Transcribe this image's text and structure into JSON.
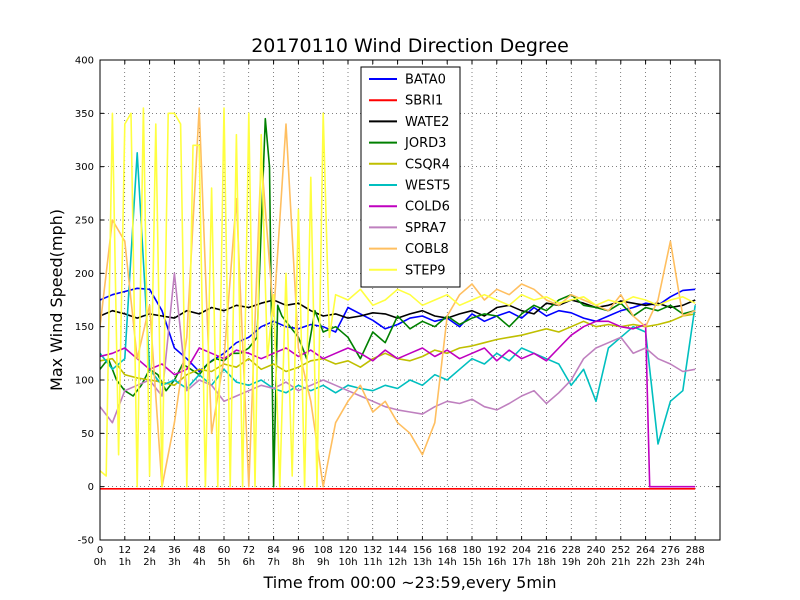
{
  "chart_data": {
    "type": "line",
    "title": "20170110 Wind Direction Degree",
    "xlabel": "Time from 00:00 ~23:59,every 5min",
    "ylabel": "Max Wind Speed(mph)",
    "xlim": [
      0,
      300
    ],
    "ylim": [
      -50,
      400
    ],
    "grid": true,
    "legend_position": "top-center",
    "x_ticks": [
      {
        "value": 0,
        "label": "0",
        "sublabel": "0h"
      },
      {
        "value": 12,
        "label": "12",
        "sublabel": "1h"
      },
      {
        "value": 24,
        "label": "24",
        "sublabel": "2h"
      },
      {
        "value": 36,
        "label": "36",
        "sublabel": "3h"
      },
      {
        "value": 48,
        "label": "48",
        "sublabel": "4h"
      },
      {
        "value": 60,
        "label": "60",
        "sublabel": "5h"
      },
      {
        "value": 72,
        "label": "72",
        "sublabel": "6h"
      },
      {
        "value": 84,
        "label": "84",
        "sublabel": "7h"
      },
      {
        "value": 96,
        "label": "96",
        "sublabel": "8h"
      },
      {
        "value": 108,
        "label": "108",
        "sublabel": "9h"
      },
      {
        "value": 120,
        "label": "120",
        "sublabel": "10h"
      },
      {
        "value": 132,
        "label": "132",
        "sublabel": "11h"
      },
      {
        "value": 144,
        "label": "144",
        "sublabel": "12h"
      },
      {
        "value": 156,
        "label": "156",
        "sublabel": "13h"
      },
      {
        "value": 168,
        "label": "168",
        "sublabel": "14h"
      },
      {
        "value": 180,
        "label": "180",
        "sublabel": "15h"
      },
      {
        "value": 192,
        "label": "192",
        "sublabel": "16h"
      },
      {
        "value": 204,
        "label": "204",
        "sublabel": "17h"
      },
      {
        "value": 216,
        "label": "216",
        "sublabel": "18h"
      },
      {
        "value": 228,
        "label": "228",
        "sublabel": "19h"
      },
      {
        "value": 240,
        "label": "240",
        "sublabel": "20h"
      },
      {
        "value": 252,
        "label": "252",
        "sublabel": "21h"
      },
      {
        "value": 264,
        "label": "264",
        "sublabel": "22h"
      },
      {
        "value": 276,
        "label": "276",
        "sublabel": "23h"
      },
      {
        "value": 288,
        "label": "288",
        "sublabel": "24h"
      }
    ],
    "y_ticks": [
      -50,
      0,
      50,
      100,
      150,
      200,
      250,
      300,
      350,
      400
    ],
    "series": [
      {
        "name": "BATA0",
        "color": "#0000ff",
        "x": [
          0,
          6,
          12,
          18,
          24,
          30,
          36,
          42,
          48,
          54,
          60,
          66,
          72,
          78,
          84,
          90,
          96,
          102,
          108,
          114,
          120,
          126,
          132,
          138,
          144,
          150,
          156,
          162,
          168,
          174,
          180,
          186,
          192,
          198,
          204,
          210,
          216,
          222,
          228,
          234,
          240,
          246,
          252,
          258,
          264,
          270,
          276,
          282,
          288
        ],
        "y": [
          175,
          180,
          183,
          186,
          185,
          165,
          130,
          120,
          108,
          118,
          125,
          135,
          140,
          150,
          155,
          150,
          148,
          152,
          150,
          145,
          168,
          162,
          156,
          148,
          152,
          158,
          160,
          155,
          158,
          150,
          162,
          155,
          160,
          164,
          158,
          168,
          160,
          165,
          163,
          158,
          155,
          160,
          165,
          168,
          172,
          170,
          178,
          184,
          185
        ]
      },
      {
        "name": "SBRI1",
        "color": "#ff0000",
        "x": [
          0,
          288
        ],
        "y": [
          -2,
          -2
        ]
      },
      {
        "name": "WATE2",
        "color": "#000000",
        "x": [
          0,
          6,
          12,
          18,
          24,
          30,
          36,
          42,
          48,
          54,
          60,
          66,
          72,
          78,
          84,
          90,
          96,
          102,
          108,
          114,
          120,
          126,
          132,
          138,
          144,
          150,
          156,
          162,
          168,
          174,
          180,
          186,
          192,
          198,
          204,
          210,
          216,
          222,
          228,
          234,
          240,
          246,
          252,
          258,
          264,
          270,
          276,
          282,
          288
        ],
        "y": [
          160,
          165,
          162,
          158,
          162,
          160,
          158,
          165,
          162,
          168,
          165,
          170,
          168,
          172,
          175,
          170,
          172,
          165,
          160,
          162,
          158,
          160,
          163,
          162,
          158,
          162,
          165,
          160,
          158,
          162,
          165,
          160,
          168,
          170,
          165,
          162,
          172,
          170,
          175,
          172,
          168,
          170,
          174,
          172,
          170,
          172,
          168,
          170,
          175
        ]
      },
      {
        "name": "JORD3",
        "color": "#008000",
        "x": [
          0,
          4,
          8,
          12,
          16,
          20,
          24,
          28,
          32,
          36,
          40,
          44,
          48,
          52,
          56,
          60,
          64,
          68,
          72,
          76,
          80,
          82,
          84,
          86,
          88,
          92,
          96,
          100,
          104,
          108,
          114,
          120,
          126,
          132,
          138,
          144,
          150,
          156,
          162,
          168,
          174,
          180,
          186,
          192,
          198,
          204,
          210,
          216,
          222,
          228,
          234,
          240,
          246,
          252,
          258,
          264,
          270,
          276,
          282,
          288
        ],
        "y": [
          110,
          120,
          100,
          90,
          85,
          95,
          110,
          105,
          90,
          100,
          115,
          110,
          105,
          115,
          120,
          118,
          125,
          125,
          130,
          140,
          345,
          300,
          0,
          170,
          160,
          150,
          140,
          120,
          165,
          145,
          150,
          140,
          120,
          145,
          135,
          160,
          148,
          155,
          150,
          160,
          152,
          158,
          162,
          160,
          150,
          162,
          170,
          165,
          175,
          180,
          170,
          168,
          165,
          172,
          160,
          168,
          165,
          170,
          162,
          165
        ]
      },
      {
        "name": "CSQR4",
        "color": "#bfbf00",
        "x": [
          0,
          6,
          12,
          18,
          24,
          30,
          36,
          42,
          48,
          54,
          60,
          66,
          72,
          78,
          84,
          90,
          96,
          102,
          108,
          114,
          120,
          126,
          132,
          138,
          144,
          150,
          156,
          162,
          168,
          174,
          180,
          186,
          192,
          198,
          204,
          210,
          216,
          222,
          228,
          234,
          240,
          246,
          252,
          258,
          264,
          270,
          276,
          282,
          288
        ],
        "y": [
          118,
          120,
          105,
          102,
          100,
          98,
          95,
          105,
          110,
          108,
          115,
          112,
          120,
          110,
          115,
          108,
          112,
          118,
          120,
          115,
          118,
          112,
          120,
          125,
          120,
          118,
          122,
          128,
          125,
          130,
          132,
          135,
          138,
          140,
          142,
          145,
          148,
          145,
          150,
          155,
          150,
          152,
          150,
          152,
          150,
          152,
          155,
          160,
          162
        ]
      },
      {
        "name": "WEST5",
        "color": "#00bfbf",
        "x": [
          0,
          6,
          12,
          18,
          24,
          30,
          36,
          42,
          48,
          54,
          60,
          66,
          72,
          78,
          84,
          90,
          96,
          102,
          108,
          114,
          120,
          126,
          132,
          138,
          144,
          150,
          156,
          162,
          168,
          174,
          180,
          186,
          192,
          198,
          204,
          210,
          216,
          222,
          228,
          234,
          240,
          246,
          252,
          258,
          264,
          270,
          276,
          282,
          288
        ],
        "y": [
          125,
          110,
          120,
          313,
          110,
          95,
          100,
          92,
          105,
          95,
          110,
          98,
          95,
          100,
          92,
          88,
          95,
          90,
          95,
          88,
          95,
          92,
          90,
          95,
          92,
          100,
          95,
          105,
          100,
          110,
          120,
          115,
          125,
          118,
          130,
          125,
          120,
          115,
          95,
          110,
          80,
          130,
          140,
          150,
          145,
          40,
          80,
          90,
          170
        ]
      },
      {
        "name": "COLD6",
        "color": "#bf00bf",
        "x": [
          0,
          6,
          12,
          18,
          24,
          30,
          36,
          42,
          48,
          54,
          60,
          66,
          72,
          78,
          84,
          90,
          96,
          102,
          108,
          114,
          120,
          126,
          132,
          138,
          144,
          150,
          156,
          162,
          168,
          174,
          180,
          186,
          192,
          198,
          204,
          210,
          216,
          222,
          228,
          234,
          240,
          246,
          252,
          258,
          264,
          266,
          270,
          276,
          282,
          288
        ],
        "y": [
          122,
          125,
          130,
          120,
          110,
          115,
          105,
          110,
          130,
          125,
          120,
          128,
          125,
          120,
          125,
          130,
          122,
          128,
          120,
          125,
          130,
          125,
          118,
          128,
          120,
          125,
          130,
          122,
          128,
          120,
          125,
          130,
          118,
          128,
          120,
          125,
          118,
          130,
          142,
          150,
          155,
          155,
          150,
          148,
          152,
          0,
          0,
          0,
          0,
          0
        ]
      },
      {
        "name": "SPRA7",
        "color": "#bf80bf",
        "x": [
          0,
          6,
          12,
          18,
          24,
          30,
          36,
          42,
          48,
          54,
          60,
          66,
          72,
          78,
          84,
          90,
          96,
          102,
          108,
          114,
          120,
          126,
          132,
          138,
          144,
          150,
          156,
          162,
          168,
          174,
          180,
          186,
          192,
          198,
          204,
          210,
          216,
          222,
          228,
          234,
          240,
          246,
          252,
          258,
          264,
          270,
          276,
          282,
          288
        ],
        "y": [
          75,
          60,
          90,
          95,
          100,
          85,
          200,
          90,
          100,
          95,
          80,
          85,
          90,
          95,
          92,
          98,
          90,
          95,
          100,
          95,
          90,
          85,
          80,
          75,
          72,
          70,
          68,
          75,
          80,
          78,
          82,
          75,
          72,
          78,
          85,
          90,
          78,
          88,
          100,
          120,
          130,
          135,
          140,
          125,
          130,
          120,
          115,
          108,
          110
        ]
      },
      {
        "name": "COBL8",
        "color": "#ffbf60",
        "x": [
          0,
          6,
          12,
          18,
          24,
          30,
          36,
          42,
          48,
          54,
          60,
          66,
          72,
          78,
          84,
          90,
          96,
          102,
          108,
          114,
          120,
          126,
          132,
          138,
          144,
          150,
          156,
          162,
          168,
          174,
          180,
          186,
          192,
          198,
          204,
          210,
          216,
          222,
          228,
          234,
          240,
          246,
          252,
          258,
          264,
          270,
          276,
          282,
          288
        ],
        "y": [
          150,
          250,
          230,
          120,
          170,
          0,
          60,
          140,
          355,
          50,
          120,
          270,
          0,
          310,
          160,
          340,
          130,
          80,
          0,
          60,
          80,
          95,
          70,
          80,
          60,
          50,
          30,
          60,
          160,
          180,
          190,
          175,
          185,
          180,
          190,
          185,
          175,
          170,
          180,
          175,
          170,
          165,
          180,
          160,
          150,
          175,
          230,
          160,
          165
        ]
      },
      {
        "name": "STEP9",
        "color": "#ffff40",
        "x": [
          0,
          3,
          6,
          9,
          12,
          15,
          18,
          21,
          24,
          27,
          30,
          33,
          36,
          39,
          42,
          45,
          48,
          51,
          54,
          57,
          60,
          63,
          66,
          69,
          72,
          75,
          78,
          81,
          84,
          87,
          90,
          93,
          96,
          99,
          102,
          105,
          108,
          111,
          114,
          120,
          126,
          132,
          138,
          144,
          150,
          156,
          162,
          168,
          174,
          180,
          186,
          192,
          198,
          204,
          210,
          216,
          222,
          228,
          234,
          240,
          246,
          252,
          258,
          264,
          270,
          276,
          282,
          288
        ],
        "y": [
          15,
          10,
          350,
          30,
          340,
          350,
          0,
          355,
          10,
          340,
          0,
          350,
          350,
          340,
          0,
          320,
          320,
          0,
          280,
          0,
          355,
          0,
          330,
          0,
          350,
          0,
          330,
          120,
          180,
          0,
          200,
          10,
          260,
          0,
          290,
          0,
          350,
          140,
          180,
          175,
          185,
          170,
          175,
          185,
          180,
          170,
          175,
          180,
          170,
          175,
          180,
          175,
          170,
          180,
          175,
          178,
          172,
          175,
          178,
          170,
          175,
          172,
          178,
          175,
          170,
          175,
          178,
          172
        ]
      }
    ]
  }
}
